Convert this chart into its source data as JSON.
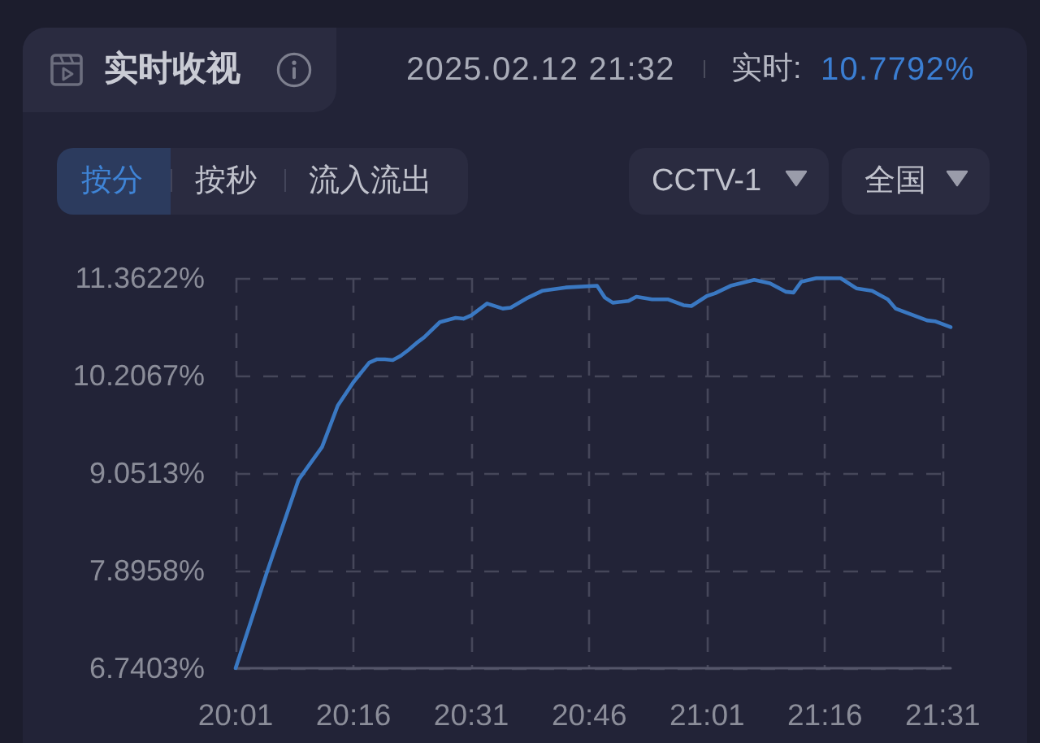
{
  "chart_data": {
    "type": "line",
    "title": "实时收视",
    "subtitle": "2025.02.12 21:32",
    "annotations": [
      "实时:",
      "10.7792%",
      "按分",
      "按秒",
      "流入流出",
      "CCTV-1",
      "全国"
    ],
    "x": [
      20.0167,
      20.0833,
      20.15,
      20.2,
      20.2333,
      20.2667,
      20.3,
      20.3167,
      20.3333,
      20.35,
      20.3667,
      20.3833,
      20.4,
      20.4167,
      20.45,
      20.4833,
      20.5,
      20.5167,
      20.55,
      20.5833,
      20.6,
      20.6333,
      20.6667,
      20.7167,
      20.7833,
      20.8,
      20.8167,
      20.85,
      20.8667,
      20.9,
      20.9333,
      20.9667,
      20.9833,
      21.0167,
      21.0333,
      21.0667,
      21.1167,
      21.15,
      21.1833,
      21.2,
      21.2167,
      21.25,
      21.2833,
      21.3,
      21.3333,
      21.3667,
      21.4,
      21.4167,
      21.45,
      21.4833,
      21.5,
      21.5333
    ],
    "values": [
      6.7403,
      7.88,
      8.97,
      9.36,
      9.85,
      10.13,
      10.36,
      10.4,
      10.4,
      10.39,
      10.44,
      10.51,
      10.59,
      10.66,
      10.84,
      10.89,
      10.88,
      10.92,
      11.06,
      11.0,
      11.01,
      11.12,
      11.21,
      11.25,
      11.27,
      11.13,
      11.07,
      11.09,
      11.14,
      11.11,
      11.11,
      11.04,
      11.03,
      11.15,
      11.18,
      11.27,
      11.34,
      11.3,
      11.2,
      11.19,
      11.32,
      11.3622,
      11.36,
      11.36,
      11.24,
      11.21,
      11.11,
      11.0,
      10.93,
      10.86,
      10.85,
      10.78
    ],
    "color": "#3a78c2",
    "xlim": [
      20.0167,
      21.5333
    ],
    "xticks": [
      {
        "value": 20.0167,
        "label": "20:01"
      },
      {
        "value": 20.2667,
        "label": "20:16"
      },
      {
        "value": 20.5167,
        "label": "20:31"
      },
      {
        "value": 20.7667,
        "label": "20:46"
      },
      {
        "value": 21.0167,
        "label": "21:01"
      },
      {
        "value": 21.2667,
        "label": "21:16"
      },
      {
        "value": 21.5167,
        "label": "21:31"
      }
    ],
    "ylim": [
      6.7403,
      11.3622
    ],
    "yticks": [
      {
        "value": 6.7403,
        "label": "6.7403%"
      },
      {
        "value": 7.8958,
        "label": "7.8958%"
      },
      {
        "value": 9.0513,
        "label": "9.0513%"
      },
      {
        "value": 10.2067,
        "label": "10.2067%"
      },
      {
        "value": 11.3622,
        "label": "11.3622%"
      }
    ],
    "grid": true,
    "line_style": "solid"
  }
}
